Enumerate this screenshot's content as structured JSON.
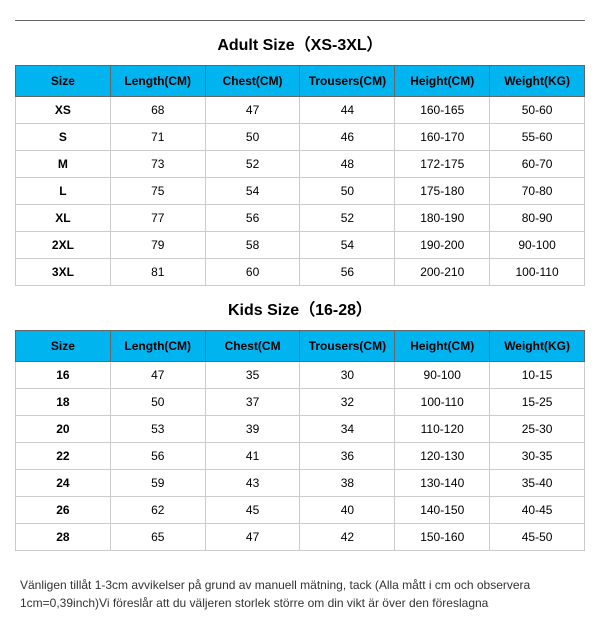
{
  "adult": {
    "title": "Adult Size（XS-3XL）",
    "columns": [
      "Size",
      "Length(CM)",
      "Chest(CM)",
      "Trousers(CM)",
      "Height(CM)",
      "Weight(KG)"
    ],
    "rows": [
      [
        "XS",
        "68",
        "47",
        "44",
        "160-165",
        "50-60"
      ],
      [
        "S",
        "71",
        "50",
        "46",
        "160-170",
        "55-60"
      ],
      [
        "M",
        "73",
        "52",
        "48",
        "172-175",
        "60-70"
      ],
      [
        "L",
        "75",
        "54",
        "50",
        "175-180",
        "70-80"
      ],
      [
        "XL",
        "77",
        "56",
        "52",
        "180-190",
        "80-90"
      ],
      [
        "2XL",
        "79",
        "58",
        "54",
        "190-200",
        "90-100"
      ],
      [
        "3XL",
        "81",
        "60",
        "56",
        "200-210",
        "100-110"
      ]
    ]
  },
  "kids": {
    "title": "Kids Size（16-28）",
    "columns": [
      "Size",
      "Length(CM)",
      "Chest(CM",
      "Trousers(CM)",
      "Height(CM)",
      "Weight(KG)"
    ],
    "rows": [
      [
        "16",
        "47",
        "35",
        "30",
        "90-100",
        "10-15"
      ],
      [
        "18",
        "50",
        "37",
        "32",
        "100-110",
        "15-25"
      ],
      [
        "20",
        "53",
        "39",
        "34",
        "110-120",
        "25-30"
      ],
      [
        "22",
        "56",
        "41",
        "36",
        "120-130",
        "30-35"
      ],
      [
        "24",
        "59",
        "43",
        "38",
        "130-140",
        "35-40"
      ],
      [
        "26",
        "62",
        "45",
        "40",
        "140-150",
        "40-45"
      ],
      [
        "28",
        "65",
        "47",
        "42",
        "150-160",
        "45-50"
      ]
    ]
  },
  "note": "Vänligen tillåt 1-3cm avvikelser på grund av manuell mätning, tack (Alla mått i cm och observera 1cm=0,39inch)Vi föreslår att du väljeren storlek större om din vikt är över den föreslagna",
  "colors": {
    "header_bg": "#00b4f0",
    "border": "#666666",
    "cell_border": "#cccccc",
    "background": "#ffffff"
  }
}
